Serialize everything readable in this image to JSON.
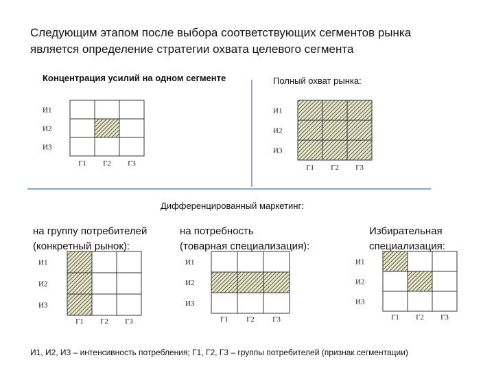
{
  "heading": {
    "line1": "Следующим этапом после выбора соответствующих сегментов рынка",
    "line2": "является определение стратегии охвата целевого сегмента"
  },
  "strategies": {
    "concentration": {
      "title": "Концентрация усилий на одном сегменте",
      "rows": [
        "И1",
        "И2",
        "И3"
      ],
      "cols": [
        "Г1",
        "Г2",
        "Г3"
      ],
      "filled": [
        [
          1,
          1
        ]
      ]
    },
    "full": {
      "title": "Полный охват рынка:",
      "rows": [
        "И1",
        "И2",
        "И3"
      ],
      "cols": [
        "Г1",
        "Г2",
        "Г3"
      ],
      "filled": [
        [
          0,
          0
        ],
        [
          0,
          1
        ],
        [
          0,
          2
        ],
        [
          1,
          0
        ],
        [
          1,
          1
        ],
        [
          1,
          2
        ],
        [
          2,
          0
        ],
        [
          2,
          1
        ],
        [
          2,
          2
        ]
      ]
    },
    "differentiated_heading": "Дифференцированный маркетинг:",
    "consumer_group": {
      "title_line1": "на группу потребителей",
      "title_line2": "(конкретный рынок):",
      "rows": [
        "И1",
        "И2",
        "И3"
      ],
      "cols": [
        "Г1",
        "Г2",
        "Г3"
      ],
      "filled": [
        [
          0,
          0
        ],
        [
          1,
          0
        ],
        [
          2,
          0
        ]
      ]
    },
    "need": {
      "title_line1": "на потребность",
      "title_line2": "(товарная специализация):",
      "rows": [
        "И1",
        "И2",
        "И3"
      ],
      "cols": [
        "Г1",
        "Г2",
        "Г3"
      ],
      "filled": [
        [
          1,
          0
        ],
        [
          1,
          1
        ],
        [
          1,
          2
        ]
      ]
    },
    "selective": {
      "title_line1": "Избирательная",
      "title_line2": "специализация:",
      "rows": [
        "И1",
        "И2",
        "И3"
      ],
      "cols": [
        "Г1",
        "Г2",
        "Г3"
      ],
      "filled": [
        [
          0,
          0
        ],
        [
          1,
          1
        ]
      ]
    }
  },
  "footnote": "И1, И2, И3 – интенсивность потребления; Г1, Г2, Г3 – группы потребителей (признак сегментации)",
  "colors": {
    "grid": "#333333",
    "divider": "#4a6fb5",
    "hatch": "#333333",
    "hatch_bg": "#e8e8c8"
  }
}
